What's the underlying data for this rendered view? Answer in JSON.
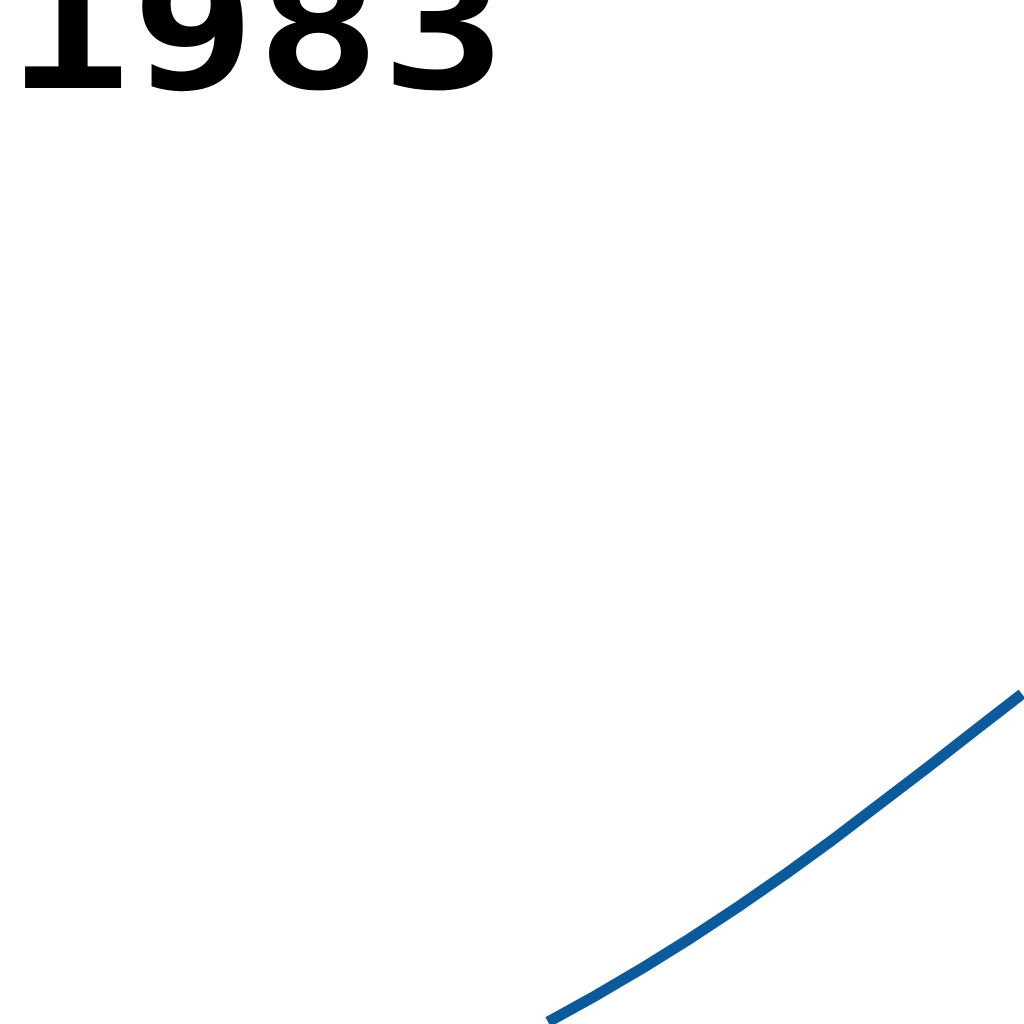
{
  "chart_data": {
    "type": "line",
    "tick_labels": [
      "1983"
    ],
    "series": [
      {
        "color": "#0a5a9c",
        "x": [
          0,
          0.1,
          0.2,
          0.3,
          0.4,
          0.5,
          0.6,
          0.7,
          0.8,
          0.9,
          1.0
        ],
        "values": [
          0,
          0.08,
          0.165,
          0.255,
          0.35,
          0.45,
          0.555,
          0.665,
          0.775,
          0.888,
          1.0
        ]
      }
    ],
    "xlim": [
      0,
      1
    ],
    "ylim": [
      0,
      1
    ],
    "grid": false,
    "legend": "none"
  }
}
